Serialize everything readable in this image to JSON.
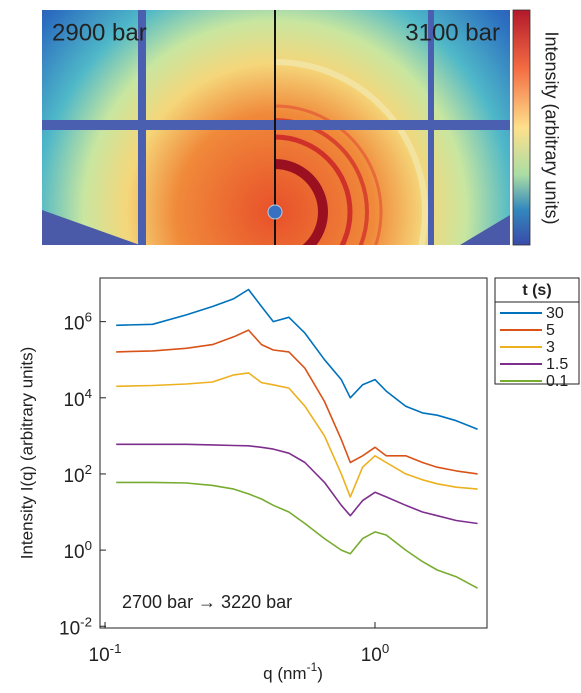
{
  "image_panel": {
    "left_label": "2900 bar",
    "right_label": "3100 bar",
    "colorbar_label": "Intensity (arbitrary units)"
  },
  "chart_data": {
    "type": "line",
    "x": [
      0.11,
      0.15,
      0.2,
      0.25,
      0.3,
      0.34,
      0.38,
      0.42,
      0.48,
      0.55,
      0.65,
      0.75,
      0.81,
      0.9,
      1.0,
      1.1,
      1.3,
      1.5,
      1.7,
      2.0,
      2.4
    ],
    "series": [
      {
        "name": "30",
        "color": "#0072bd",
        "values": [
          800000,
          850000,
          1500000,
          2500000,
          4000000,
          7000000,
          2500000,
          1000000,
          1300000,
          500000,
          100000,
          30000,
          10000,
          22000,
          30000,
          15000,
          6000,
          4000,
          3500,
          2500,
          1500
        ]
      },
      {
        "name": "5",
        "color": "#d95319",
        "values": [
          160000,
          170000,
          200000,
          250000,
          400000,
          600000,
          250000,
          180000,
          160000,
          60000,
          8000,
          800,
          200,
          300,
          500,
          300,
          300,
          200,
          150,
          120,
          100
        ]
      },
      {
        "name": "3",
        "color": "#edb120",
        "values": [
          20000,
          21000,
          23000,
          26000,
          40000,
          45000,
          25000,
          22000,
          18000,
          6000,
          1000,
          100,
          25,
          150,
          300,
          200,
          100,
          70,
          55,
          45,
          40
        ]
      },
      {
        "name": "1.5",
        "color": "#7e2f8e",
        "values": [
          600,
          600,
          600,
          580,
          560,
          550,
          500,
          450,
          350,
          200,
          60,
          15,
          8,
          20,
          33,
          25,
          15,
          10,
          8,
          6,
          5
        ]
      },
      {
        "name": "0.1",
        "color": "#77ac30",
        "values": [
          60,
          60,
          58,
          50,
          40,
          30,
          22,
          15,
          10,
          5,
          2,
          1,
          0.8,
          2,
          3,
          2.5,
          1,
          0.5,
          0.3,
          0.2,
          0.1
        ]
      }
    ],
    "xlim": [
      0.0958,
      2.6
    ],
    "ylim": [
      0.009,
      14000000
    ],
    "log_x": true,
    "log_y": true,
    "xticks": [
      {
        "value": 0.1,
        "label": "10^-1"
      },
      {
        "value": 1,
        "label": "10^0"
      }
    ],
    "yticks": [
      {
        "value": 0.01,
        "label": "10^-2"
      },
      {
        "value": 1,
        "label": "10^0"
      },
      {
        "value": 100,
        "label": "10^2"
      },
      {
        "value": 10000,
        "label": "10^4"
      },
      {
        "value": 1000000,
        "label": "10^6"
      }
    ],
    "x_label": "q (nm^-1)",
    "y_label": "Intensity I(q) (arbitrary units)",
    "legend_title": "t (s)",
    "legend": "outside-right",
    "annotation": "2700 bar → 3220 bar"
  }
}
